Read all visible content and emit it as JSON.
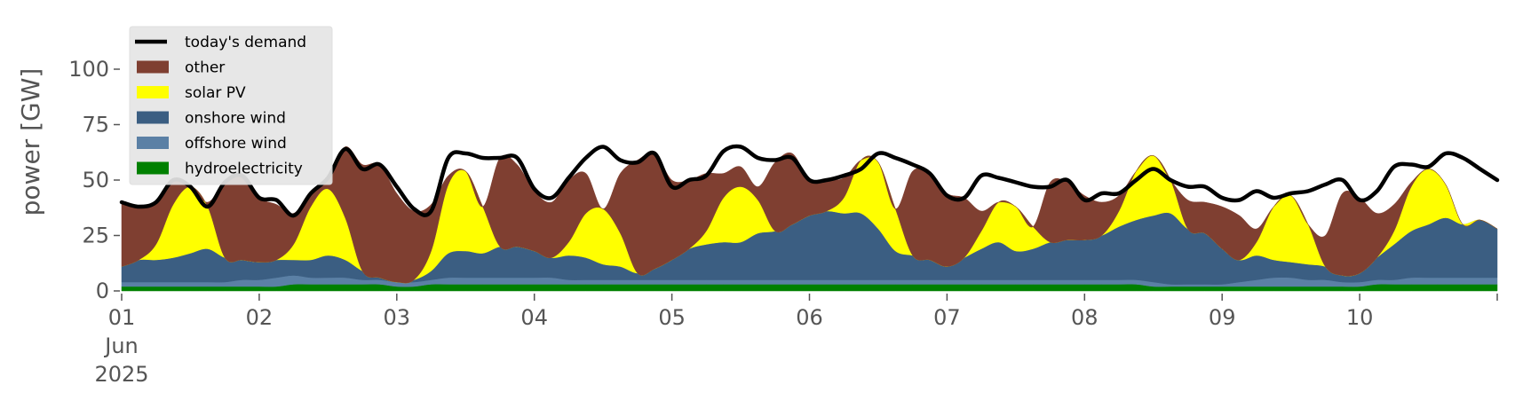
{
  "chart_data": {
    "type": "area",
    "stacked": true,
    "ylabel": "power [GW]",
    "ylim": [
      0,
      120
    ],
    "yticks": [
      0,
      25,
      50,
      75,
      100
    ],
    "xlim": [
      "2025-06-01",
      "2025-06-11"
    ],
    "xticks": [
      {
        "date": "2025-06-01",
        "lines": [
          "01",
          "Jun",
          "2025"
        ]
      },
      {
        "date": "2025-06-02",
        "lines": [
          "02"
        ]
      },
      {
        "date": "2025-06-03",
        "lines": [
          "03"
        ]
      },
      {
        "date": "2025-06-04",
        "lines": [
          "04"
        ]
      },
      {
        "date": "2025-06-05",
        "lines": [
          "05"
        ]
      },
      {
        "date": "2025-06-06",
        "lines": [
          "06"
        ]
      },
      {
        "date": "2025-06-07",
        "lines": [
          "07"
        ]
      },
      {
        "date": "2025-06-08",
        "lines": [
          "08"
        ]
      },
      {
        "date": "2025-06-09",
        "lines": [
          "09"
        ]
      },
      {
        "date": "2025-06-10",
        "lines": [
          "10"
        ]
      }
    ],
    "x": [
      "2025-06-01 00:00",
      "2025-06-01 03:00",
      "2025-06-01 06:00",
      "2025-06-01 09:00",
      "2025-06-01 12:00",
      "2025-06-01 15:00",
      "2025-06-01 18:00",
      "2025-06-01 21:00",
      "2025-06-02 00:00",
      "2025-06-02 03:00",
      "2025-06-02 06:00",
      "2025-06-02 09:00",
      "2025-06-02 12:00",
      "2025-06-02 15:00",
      "2025-06-02 18:00",
      "2025-06-02 21:00",
      "2025-06-03 00:00",
      "2025-06-03 03:00",
      "2025-06-03 06:00",
      "2025-06-03 09:00",
      "2025-06-03 12:00",
      "2025-06-03 15:00",
      "2025-06-03 18:00",
      "2025-06-03 21:00",
      "2025-06-04 00:00",
      "2025-06-04 03:00",
      "2025-06-04 06:00",
      "2025-06-04 09:00",
      "2025-06-04 12:00",
      "2025-06-04 15:00",
      "2025-06-04 18:00",
      "2025-06-04 21:00",
      "2025-06-05 00:00",
      "2025-06-05 03:00",
      "2025-06-05 06:00",
      "2025-06-05 09:00",
      "2025-06-05 12:00",
      "2025-06-05 15:00",
      "2025-06-05 18:00",
      "2025-06-05 21:00",
      "2025-06-06 00:00",
      "2025-06-06 03:00",
      "2025-06-06 06:00",
      "2025-06-06 09:00",
      "2025-06-06 12:00",
      "2025-06-06 15:00",
      "2025-06-06 18:00",
      "2025-06-06 21:00",
      "2025-06-07 00:00",
      "2025-06-07 03:00",
      "2025-06-07 06:00",
      "2025-06-07 09:00",
      "2025-06-07 12:00",
      "2025-06-07 15:00",
      "2025-06-07 18:00",
      "2025-06-07 21:00",
      "2025-06-08 00:00",
      "2025-06-08 03:00",
      "2025-06-08 06:00",
      "2025-06-08 09:00",
      "2025-06-08 12:00",
      "2025-06-08 15:00",
      "2025-06-08 18:00",
      "2025-06-08 21:00",
      "2025-06-09 00:00",
      "2025-06-09 03:00",
      "2025-06-09 06:00",
      "2025-06-09 09:00",
      "2025-06-09 12:00",
      "2025-06-09 15:00",
      "2025-06-09 18:00",
      "2025-06-09 21:00",
      "2025-06-10 00:00",
      "2025-06-10 03:00",
      "2025-06-10 06:00",
      "2025-06-10 09:00",
      "2025-06-10 12:00",
      "2025-06-10 15:00",
      "2025-06-10 18:00",
      "2025-06-10 21:00",
      "2025-06-11 00:00"
    ],
    "series": [
      {
        "name": "hydroelectricity",
        "kind": "area",
        "color": "#008000",
        "values": [
          2,
          2,
          2,
          2,
          2,
          2,
          2,
          2,
          2,
          2,
          3,
          3,
          3,
          3,
          3,
          3,
          2,
          2,
          3,
          3,
          3,
          3,
          3,
          3,
          3,
          3,
          3,
          3,
          3,
          3,
          3,
          3,
          3,
          3,
          3,
          3,
          3,
          3,
          3,
          3,
          3,
          3,
          3,
          3,
          3,
          3,
          3,
          3,
          3,
          3,
          3,
          3,
          3,
          3,
          3,
          3,
          3,
          3,
          3,
          3,
          2,
          2,
          2,
          2,
          2,
          2,
          2,
          2,
          2,
          2,
          2,
          2,
          2,
          3,
          3,
          3,
          3,
          3,
          3,
          3,
          3
        ]
      },
      {
        "name": "offshore wind",
        "kind": "area",
        "color": "#5b80a5",
        "values": [
          2,
          2,
          2,
          2,
          2,
          2,
          2,
          3,
          3,
          4,
          4,
          3,
          3,
          3,
          2,
          2,
          2,
          2,
          2,
          3,
          3,
          3,
          3,
          3,
          3,
          3,
          2,
          2,
          2,
          2,
          2,
          2,
          2,
          2,
          2,
          2,
          2,
          2,
          2,
          2,
          2,
          2,
          2,
          2,
          2,
          2,
          2,
          2,
          2,
          2,
          2,
          2,
          2,
          2,
          2,
          2,
          2,
          2,
          2,
          2,
          2,
          1,
          1,
          1,
          1,
          2,
          3,
          4,
          4,
          3,
          3,
          2,
          2,
          2,
          2,
          3,
          3,
          3,
          3,
          3,
          3
        ]
      },
      {
        "name": "onshore wind",
        "kind": "area",
        "color": "#3b5e82",
        "values": [
          7,
          10,
          10,
          11,
          13,
          15,
          11,
          9,
          8,
          8,
          7,
          8,
          10,
          8,
          4,
          1,
          0,
          1,
          4,
          11,
          12,
          11,
          14,
          14,
          12,
          9,
          11,
          10,
          7,
          6,
          3,
          5,
          9,
          14,
          16,
          17,
          17,
          21,
          22,
          25,
          29,
          31,
          30,
          30,
          23,
          13,
          11,
          9,
          6,
          10,
          14,
          17,
          13,
          14,
          17,
          18,
          18,
          20,
          24,
          27,
          30,
          32,
          25,
          23,
          16,
          10,
          11,
          8,
          7,
          7,
          6,
          3,
          4,
          10,
          16,
          21,
          24,
          27,
          24,
          26,
          22
        ]
      },
      {
        "name": "solar PV",
        "kind": "area",
        "color": "#ffff00",
        "values": [
          0,
          0,
          7,
          24,
          30,
          19,
          0,
          0,
          0,
          0,
          7,
          24,
          30,
          19,
          0,
          0,
          0,
          0,
          9,
          31,
          36,
          21,
          0,
          0,
          0,
          0,
          6,
          20,
          25,
          15,
          0,
          0,
          0,
          0,
          6,
          20,
          25,
          15,
          0,
          0,
          0,
          0,
          7,
          24,
          30,
          19,
          0,
          0,
          0,
          0,
          8,
          18,
          20,
          10,
          0,
          0,
          0,
          0,
          7,
          22,
          27,
          15,
          0,
          0,
          0,
          0,
          6,
          24,
          30,
          18,
          0,
          0,
          0,
          0,
          6,
          20,
          25,
          15,
          0,
          0,
          0
        ]
      },
      {
        "name": "other",
        "kind": "area",
        "color": "#7f3f31",
        "values": [
          29,
          24,
          19,
          11,
          0,
          2,
          34,
          38,
          29,
          25,
          14,
          6,
          5,
          32,
          48,
          51,
          40,
          31,
          21,
          4,
          0,
          0,
          40,
          37,
          27,
          25,
          28,
          18,
          0,
          27,
          51,
          52,
          36,
          31,
          26,
          11,
          9,
          6,
          31,
          32,
          16,
          14,
          9,
          0,
          0,
          0,
          38,
          39,
          33,
          27,
          9,
          0,
          0,
          0,
          27,
          26,
          20,
          15,
          7,
          0,
          0,
          0,
          13,
          14,
          19,
          20,
          6,
          0,
          0,
          0,
          14,
          37,
          34,
          20,
          12,
          2,
          0,
          0,
          0,
          0,
          0
        ]
      },
      {
        "name": "today's demand",
        "kind": "line",
        "color": "#000000",
        "values": [
          40,
          38,
          40,
          50,
          47,
          38,
          49,
          52,
          42,
          41,
          34,
          44,
          51,
          64,
          55,
          57,
          47,
          37,
          36,
          60,
          62,
          60,
          60,
          60,
          46,
          42,
          51,
          60,
          65,
          59,
          58,
          62,
          47,
          50,
          52,
          63,
          65,
          60,
          59,
          60,
          50,
          50,
          52,
          55,
          62,
          60,
          57,
          53,
          43,
          42,
          52,
          51,
          49,
          47,
          47,
          50,
          41,
          44,
          44,
          50,
          55,
          50,
          47,
          47,
          42,
          41,
          45,
          42,
          44,
          45,
          48,
          50,
          41,
          45,
          56,
          57,
          56,
          62,
          60,
          55,
          50
        ]
      }
    ],
    "legend": {
      "placement": "upper-left",
      "entries": [
        "today's demand",
        "other",
        "solar PV",
        "onshore wind",
        "offshore wind",
        "hydroelectricity"
      ]
    },
    "grid": false,
    "background": "#ffffff",
    "legend_background": "#e5e5e5"
  }
}
